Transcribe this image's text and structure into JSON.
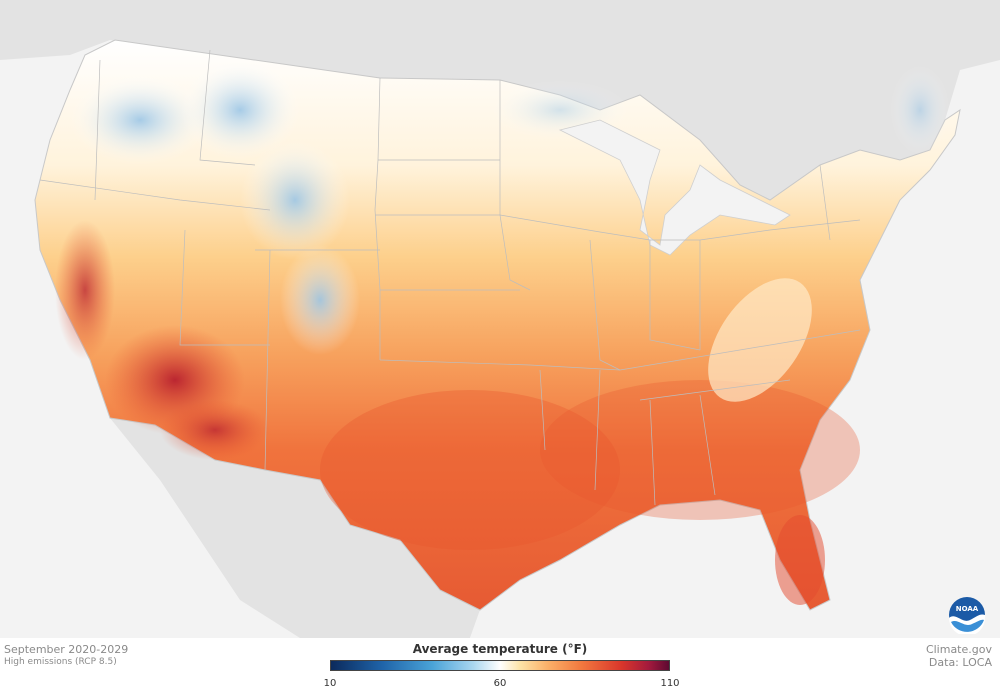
{
  "map": {
    "regions": [
      "United States",
      "Canada",
      "Mexico"
    ],
    "variable": "Average temperature"
  },
  "footer": {
    "period": "September 2020-2029",
    "scenario": "High emissions (RCP 8.5)",
    "credit": "Climate.gov",
    "data_source": "Data: LOCA"
  },
  "legend": {
    "title": "Average temperature (°F)",
    "min": 10,
    "mid": 60,
    "max": 110,
    "tick_labels": [
      "10",
      "60",
      "110"
    ],
    "colors": [
      "#0b2a5c",
      "#1f63a8",
      "#4aa3d8",
      "#a9d6ef",
      "#ffffff",
      "#fde3a7",
      "#fbb16a",
      "#f2793f",
      "#d9362b",
      "#a31a3d",
      "#5e0a32"
    ]
  },
  "logo": {
    "icon": "noaa-logo-icon",
    "text": "NOAA"
  }
}
